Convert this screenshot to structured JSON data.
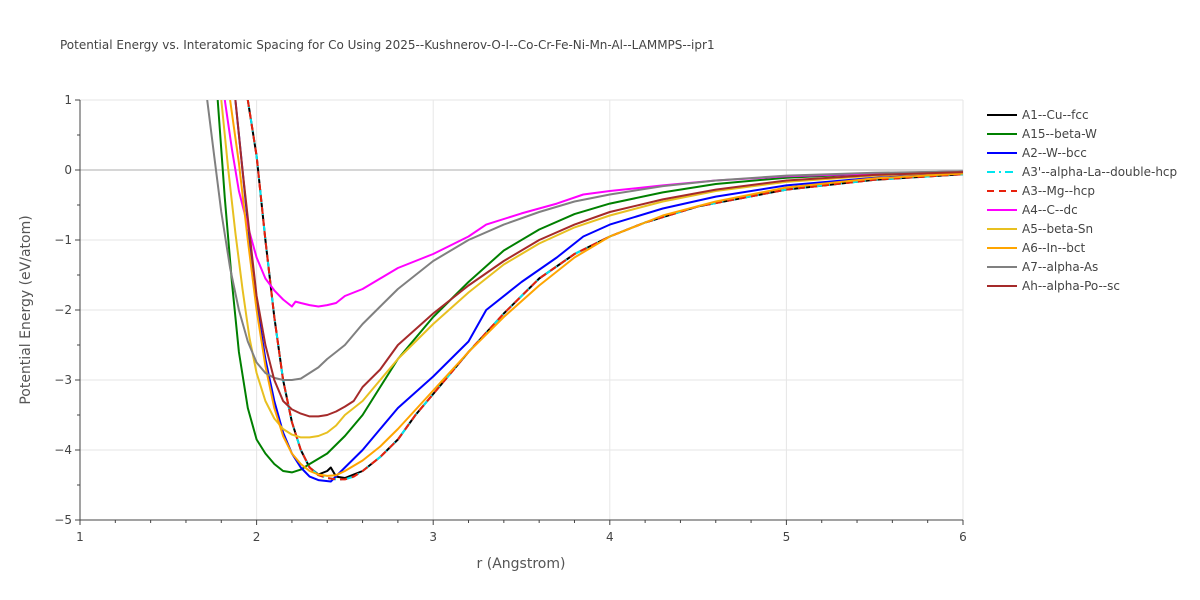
{
  "chart_data": {
    "type": "line",
    "title": "Potential Energy vs. Interatomic Spacing for Co Using 2025--Kushnerov-O-I--Co-Cr-Fe-Ni-Mn-Al--LAMMPS--ipr1",
    "xlabel": "r (Angstrom)",
    "ylabel": "Potential Energy (eV/atom)",
    "xlim": [
      1,
      6
    ],
    "ylim": [
      -5,
      1
    ],
    "xticks": [
      1,
      2,
      3,
      4,
      5,
      6
    ],
    "yticks": [
      1,
      0,
      -1,
      -2,
      -3,
      -4,
      -5
    ],
    "xtick_labels": [
      "1",
      "2",
      "3",
      "4",
      "5",
      "6"
    ],
    "ytick_labels": [
      "1",
      "0",
      "−1",
      "−2",
      "−3",
      "−4",
      "−5"
    ],
    "grid": true,
    "legend_position": "right",
    "series": [
      {
        "name": "A1--Cu--fcc",
        "color": "#000000",
        "dash": "solid",
        "x": [
          1.95,
          2.0,
          2.05,
          2.1,
          2.15,
          2.2,
          2.25,
          2.3,
          2.35,
          2.4,
          2.42,
          2.45,
          2.5,
          2.55,
          2.6,
          2.7,
          2.8,
          2.9,
          3.0,
          3.2,
          3.4,
          3.6,
          3.8,
          4.0,
          4.2,
          4.5,
          5.0,
          5.5,
          6.0
        ],
        "y": [
          1.0,
          0.2,
          -1.0,
          -2.1,
          -3.0,
          -3.6,
          -4.0,
          -4.25,
          -4.35,
          -4.3,
          -4.25,
          -4.38,
          -4.4,
          -4.35,
          -4.3,
          -4.1,
          -3.85,
          -3.5,
          -3.2,
          -2.6,
          -2.05,
          -1.55,
          -1.2,
          -0.95,
          -0.75,
          -0.52,
          -0.28,
          -0.14,
          -0.06
        ]
      },
      {
        "name": "A15--beta-W",
        "color": "#008000",
        "dash": "solid",
        "x": [
          1.78,
          1.82,
          1.86,
          1.9,
          1.95,
          2.0,
          2.05,
          2.1,
          2.15,
          2.2,
          2.25,
          2.3,
          2.4,
          2.5,
          2.6,
          2.7,
          2.8,
          3.0,
          3.2,
          3.4,
          3.6,
          3.8,
          4.0,
          4.3,
          4.6,
          5.0,
          5.5,
          6.0
        ],
        "y": [
          1.0,
          -0.4,
          -1.6,
          -2.6,
          -3.4,
          -3.85,
          -4.05,
          -4.2,
          -4.3,
          -4.32,
          -4.28,
          -4.2,
          -4.05,
          -3.8,
          -3.5,
          -3.1,
          -2.7,
          -2.1,
          -1.6,
          -1.15,
          -0.85,
          -0.63,
          -0.48,
          -0.32,
          -0.2,
          -0.11,
          -0.05,
          -0.02
        ]
      },
      {
        "name": "A2--W--bcc",
        "color": "#0000ff",
        "dash": "solid",
        "x": [
          1.88,
          1.92,
          1.96,
          2.0,
          2.05,
          2.1,
          2.15,
          2.2,
          2.25,
          2.3,
          2.35,
          2.42,
          2.5,
          2.6,
          2.7,
          2.8,
          3.0,
          3.2,
          3.3,
          3.5,
          3.7,
          3.85,
          4.0,
          4.3,
          4.6,
          5.0,
          5.5,
          6.0
        ],
        "y": [
          1.0,
          0.0,
          -1.0,
          -1.9,
          -2.7,
          -3.3,
          -3.75,
          -4.05,
          -4.25,
          -4.38,
          -4.43,
          -4.45,
          -4.25,
          -4.0,
          -3.7,
          -3.4,
          -2.95,
          -2.45,
          -2.0,
          -1.6,
          -1.25,
          -0.95,
          -0.78,
          -0.55,
          -0.38,
          -0.22,
          -0.11,
          -0.05
        ]
      },
      {
        "name": "A3'--alpha-La--double-hcp",
        "color": "#00e5ee",
        "dash": "dashdot",
        "x": [
          1.95,
          2.0,
          2.05,
          2.1,
          2.15,
          2.2,
          2.25,
          2.3,
          2.35,
          2.4,
          2.45,
          2.5,
          2.55,
          2.6,
          2.7,
          2.8,
          2.9,
          3.0,
          3.2,
          3.4,
          3.6,
          3.8,
          4.0,
          4.2,
          4.5,
          5.0,
          5.5,
          6.0
        ],
        "y": [
          1.0,
          0.2,
          -1.0,
          -2.1,
          -3.0,
          -3.6,
          -4.0,
          -4.25,
          -4.36,
          -4.4,
          -4.42,
          -4.42,
          -4.38,
          -4.3,
          -4.1,
          -3.85,
          -3.5,
          -3.2,
          -2.6,
          -2.05,
          -1.55,
          -1.2,
          -0.95,
          -0.75,
          -0.52,
          -0.28,
          -0.14,
          -0.06
        ]
      },
      {
        "name": "A3--Mg--hcp",
        "color": "#e8200c",
        "dash": "dash",
        "x": [
          1.95,
          2.0,
          2.05,
          2.1,
          2.15,
          2.2,
          2.25,
          2.3,
          2.35,
          2.4,
          2.45,
          2.5,
          2.55,
          2.6,
          2.7,
          2.8,
          2.9,
          3.0,
          3.2,
          3.4,
          3.6,
          3.8,
          4.0,
          4.2,
          4.5,
          5.0,
          5.5,
          6.0
        ],
        "y": [
          1.0,
          0.2,
          -1.0,
          -2.1,
          -3.0,
          -3.6,
          -4.0,
          -4.25,
          -4.36,
          -4.4,
          -4.42,
          -4.42,
          -4.38,
          -4.3,
          -4.1,
          -3.85,
          -3.5,
          -3.2,
          -2.6,
          -2.05,
          -1.55,
          -1.2,
          -0.95,
          -0.75,
          -0.52,
          -0.28,
          -0.14,
          -0.06
        ]
      },
      {
        "name": "A4--C--dc",
        "color": "#ff00ff",
        "dash": "solid",
        "x": [
          1.82,
          1.86,
          1.9,
          1.95,
          2.0,
          2.05,
          2.1,
          2.15,
          2.2,
          2.22,
          2.25,
          2.3,
          2.35,
          2.4,
          2.45,
          2.5,
          2.6,
          2.7,
          2.8,
          3.0,
          3.2,
          3.3,
          3.5,
          3.7,
          3.85,
          4.0,
          4.3,
          4.6,
          5.0,
          5.5,
          6.0
        ],
        "y": [
          1.0,
          0.3,
          -0.3,
          -0.8,
          -1.25,
          -1.55,
          -1.72,
          -1.85,
          -1.95,
          -1.88,
          -1.9,
          -1.93,
          -1.95,
          -1.93,
          -1.9,
          -1.8,
          -1.7,
          -1.55,
          -1.4,
          -1.2,
          -0.95,
          -0.78,
          -0.62,
          -0.48,
          -0.35,
          -0.3,
          -0.22,
          -0.15,
          -0.09,
          -0.05,
          -0.02
        ]
      },
      {
        "name": "A5--beta-Sn",
        "color": "#e8c020",
        "dash": "solid",
        "x": [
          1.8,
          1.84,
          1.88,
          1.92,
          1.96,
          2.0,
          2.05,
          2.1,
          2.15,
          2.2,
          2.25,
          2.3,
          2.35,
          2.4,
          2.45,
          2.5,
          2.6,
          2.7,
          2.8,
          3.0,
          3.2,
          3.4,
          3.6,
          3.8,
          4.0,
          4.3,
          4.6,
          5.0,
          5.5,
          6.0
        ],
        "y": [
          1.0,
          0.0,
          -0.9,
          -1.7,
          -2.4,
          -2.9,
          -3.3,
          -3.55,
          -3.7,
          -3.78,
          -3.82,
          -3.82,
          -3.8,
          -3.75,
          -3.65,
          -3.5,
          -3.3,
          -3.0,
          -2.7,
          -2.2,
          -1.75,
          -1.35,
          -1.05,
          -0.82,
          -0.65,
          -0.45,
          -0.3,
          -0.17,
          -0.08,
          -0.03
        ]
      },
      {
        "name": "A6--In--bct",
        "color": "#ffa500",
        "dash": "solid",
        "x": [
          1.85,
          1.9,
          1.95,
          2.0,
          2.05,
          2.1,
          2.15,
          2.2,
          2.25,
          2.3,
          2.35,
          2.4,
          2.45,
          2.5,
          2.6,
          2.7,
          2.8,
          3.0,
          3.2,
          3.4,
          3.6,
          3.8,
          4.0,
          4.3,
          4.6,
          5.0,
          5.5,
          6.0
        ],
        "y": [
          1.0,
          0.1,
          -1.0,
          -2.0,
          -2.8,
          -3.4,
          -3.8,
          -4.05,
          -4.2,
          -4.3,
          -4.35,
          -4.37,
          -4.36,
          -4.3,
          -4.15,
          -3.95,
          -3.7,
          -3.15,
          -2.6,
          -2.1,
          -1.65,
          -1.25,
          -0.95,
          -0.65,
          -0.45,
          -0.25,
          -0.12,
          -0.05
        ]
      },
      {
        "name": "A7--alpha-As",
        "color": "#808080",
        "dash": "solid",
        "x": [
          1.72,
          1.76,
          1.8,
          1.85,
          1.9,
          1.95,
          2.0,
          2.05,
          2.1,
          2.15,
          2.2,
          2.25,
          2.3,
          2.35,
          2.4,
          2.45,
          2.5,
          2.6,
          2.7,
          2.8,
          3.0,
          3.2,
          3.4,
          3.6,
          3.8,
          4.0,
          4.3,
          4.6,
          5.0,
          5.5,
          6.0
        ],
        "y": [
          1.0,
          0.2,
          -0.6,
          -1.4,
          -2.0,
          -2.45,
          -2.75,
          -2.9,
          -2.97,
          -3.0,
          -3.0,
          -2.98,
          -2.9,
          -2.82,
          -2.7,
          -2.6,
          -2.5,
          -2.2,
          -1.95,
          -1.7,
          -1.3,
          -1.0,
          -0.78,
          -0.6,
          -0.45,
          -0.35,
          -0.23,
          -0.15,
          -0.08,
          -0.04,
          -0.02
        ]
      },
      {
        "name": "Ah--alpha-Po--sc",
        "color": "#a52a2a",
        "dash": "solid",
        "x": [
          1.88,
          1.92,
          1.96,
          2.0,
          2.05,
          2.1,
          2.15,
          2.2,
          2.25,
          2.3,
          2.35,
          2.4,
          2.45,
          2.5,
          2.55,
          2.6,
          2.7,
          2.8,
          3.0,
          3.2,
          3.4,
          3.6,
          3.8,
          4.0,
          4.3,
          4.6,
          5.0,
          5.5,
          6.0
        ],
        "y": [
          1.0,
          0.0,
          -0.9,
          -1.8,
          -2.5,
          -3.0,
          -3.3,
          -3.42,
          -3.48,
          -3.52,
          -3.52,
          -3.5,
          -3.45,
          -3.38,
          -3.3,
          -3.1,
          -2.85,
          -2.5,
          -2.05,
          -1.65,
          -1.3,
          -1.0,
          -0.78,
          -0.6,
          -0.42,
          -0.28,
          -0.15,
          -0.07,
          -0.03
        ]
      }
    ]
  }
}
